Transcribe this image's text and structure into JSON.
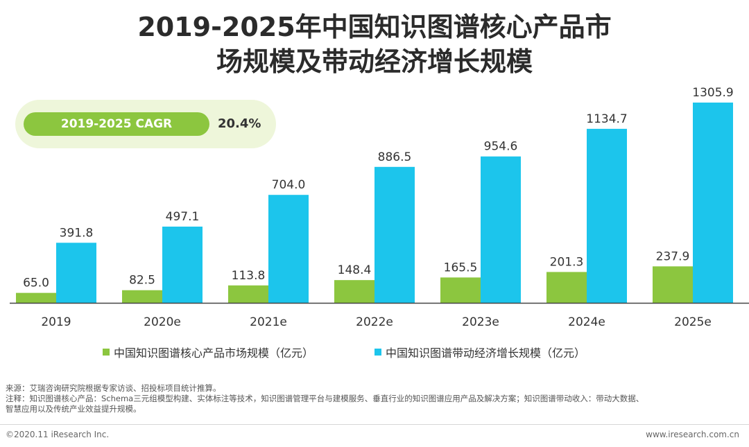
{
  "title": {
    "line1": "2019-2025年中国知识图谱核心产品市",
    "line2": "场规模及带动经济增长规模"
  },
  "cagr": {
    "label": "2019-2025 CAGR",
    "value": "20.4%"
  },
  "colors": {
    "core": "#8cc63f",
    "driven": "#1cc5ec",
    "cagr_bg": "#eef6da"
  },
  "chart_data": {
    "type": "bar",
    "categories": [
      "2019",
      "2020e",
      "2021e",
      "2022e",
      "2023e",
      "2024e",
      "2025e"
    ],
    "series": [
      {
        "name": "中国知识图谱核心产品市场规模（亿元）",
        "values": [
          65.0,
          82.5,
          113.8,
          148.4,
          165.5,
          201.3,
          237.9
        ],
        "labels": [
          "65.0",
          "82.5",
          "113.8",
          "148.4",
          "165.5",
          "201.3",
          "237.9"
        ]
      },
      {
        "name": "中国知识图谱带动经济增长规模（亿元）",
        "values": [
          391.8,
          497.1,
          704.0,
          886.5,
          954.6,
          1134.7,
          1305.9
        ],
        "labels": [
          "391.8",
          "497.1",
          "704.0",
          "886.5",
          "954.6",
          "1134.7",
          "1305.9"
        ]
      }
    ],
    "ylim": [
      0,
      1305.9
    ],
    "grid": false,
    "legend_position": "bottom"
  },
  "notes": {
    "source": "来源：艾瑞咨询研究院根据专家访谈、招投标项目统计推算。",
    "note1": "注释：知识图谱核心产品：Schema三元组模型构建、实体标注等技术，知识图谱管理平台与建模服务、垂直行业的知识图谱应用产品及解决方案；知识图谱带动收入：带动大数据、",
    "note2": "智慧应用以及传统产业效益提升规模。"
  },
  "footer": {
    "copyright": "©2020.11 iResearch Inc.",
    "website": "www.iresearch.com.cn"
  }
}
